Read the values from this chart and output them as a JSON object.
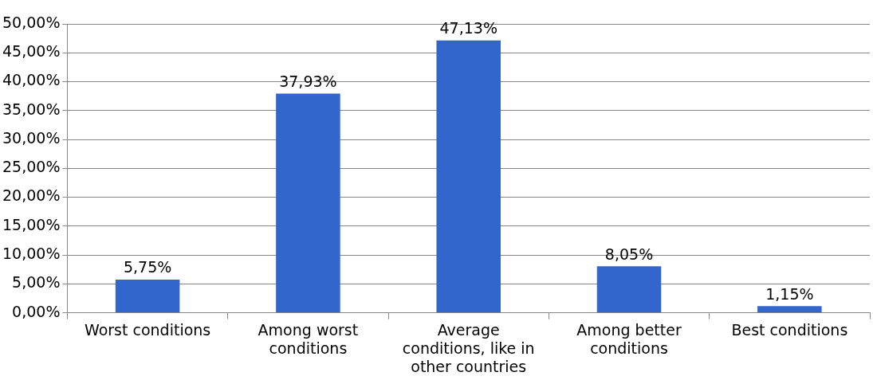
{
  "chart_data": {
    "type": "bar",
    "categories": [
      "Worst conditions",
      "Among worst conditions",
      "Average conditions, like in other countries",
      "Among better conditions",
      "Best conditions"
    ],
    "values": [
      5.75,
      37.93,
      47.13,
      8.05,
      1.15
    ],
    "value_labels": [
      "5,75%",
      "37,93%",
      "47,13%",
      "8,05%",
      "1,15%"
    ],
    "color": "#3366cc",
    "ylim": [
      0,
      50
    ],
    "yticks": [
      {
        "value": 0,
        "label": "0,00%"
      },
      {
        "value": 5,
        "label": "5,00%"
      },
      {
        "value": 10,
        "label": "10,00%"
      },
      {
        "value": 15,
        "label": "15,00%"
      },
      {
        "value": 20,
        "label": "20,00%"
      },
      {
        "value": 25,
        "label": "25,00%"
      },
      {
        "value": 30,
        "label": "30,00%"
      },
      {
        "value": 35,
        "label": "35,00%"
      },
      {
        "value": 40,
        "label": "40,00%"
      },
      {
        "value": 45,
        "label": "45,00%"
      },
      {
        "value": 50,
        "label": "50,00%"
      }
    ],
    "grid": "y"
  }
}
